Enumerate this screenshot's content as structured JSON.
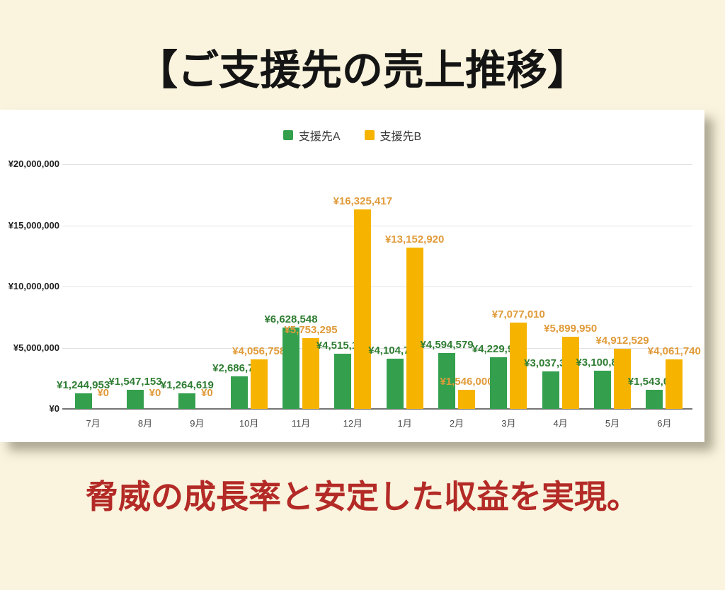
{
  "page": {
    "title": "【ご支援先の売上推移】",
    "caption": "脅威の成長率と安定した収益を実現。",
    "background_color": "#faf3dd",
    "caption_color": "#b32a26",
    "title_color": "#141414"
  },
  "chart_data": {
    "type": "bar",
    "categories": [
      "7月",
      "8月",
      "9月",
      "10月",
      "11月",
      "12月",
      "1月",
      "2月",
      "3月",
      "4月",
      "5月",
      "6月"
    ],
    "series": [
      {
        "name": "支援先A",
        "color": "#34a04e",
        "label_color": "#2f7d33",
        "values": [
          1244953,
          1547153,
          1264619,
          2686763,
          6628548,
          4515179,
          4104708,
          4594579,
          4229963,
          3037394,
          3100829,
          1543073
        ],
        "labels": [
          "¥1,244,953",
          "¥1,547,153",
          "¥1,264,619",
          "¥2,686,763",
          "¥6,628,548",
          "¥4,515,179",
          "¥4,104,708",
          "¥4,594,579",
          "¥4,229,963",
          "¥3,037,394",
          "¥3,100,829",
          "¥1,543,073"
        ]
      },
      {
        "name": "支援先B",
        "color": "#f6b400",
        "label_color": "#e09b3a",
        "values": [
          0,
          0,
          0,
          4056758,
          5753295,
          16325417,
          13152920,
          1546000,
          7077010,
          5899950,
          4912529,
          4061740
        ],
        "labels": [
          "¥0",
          "¥0",
          "¥0",
          "¥4,056,758",
          "¥5,753,295",
          "¥16,325,417",
          "¥13,152,920",
          "¥1,546,000",
          "¥7,077,010",
          "¥5,899,950",
          "¥4,912,529",
          "¥4,061,740"
        ]
      }
    ],
    "y_ticks": [
      0,
      5000000,
      10000000,
      15000000,
      20000000
    ],
    "y_tick_labels": [
      "¥0",
      "¥5,000,000",
      "¥10,000,000",
      "¥15,000,000",
      "¥20,000,000"
    ],
    "ylim": [
      0,
      20000000
    ],
    "grid": true,
    "legend_position": "top-center",
    "xlabel": "",
    "ylabel": ""
  }
}
